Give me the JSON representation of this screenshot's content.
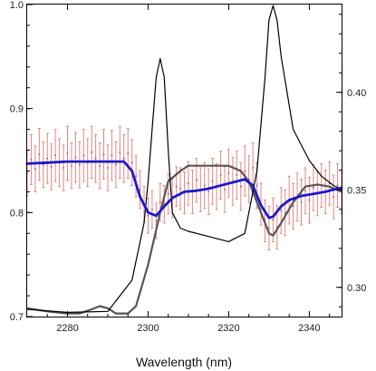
{
  "chart_data": {
    "type": "line",
    "xlabel": "Wavelength (nm)",
    "xlim": [
      2270,
      2348
    ],
    "ylim_left": [
      0.7,
      1.0
    ],
    "ylim_right": [
      0.285,
      0.445
    ],
    "x_ticks": [
      2280,
      2300,
      2320,
      2340
    ],
    "y_ticks_left": [
      0.7,
      0.8,
      0.9,
      1.0
    ],
    "y_ticks_left_labels": [
      "0.7",
      "0.8",
      "0.9",
      "1.0"
    ],
    "y_ticks_right": [
      0.3,
      0.35,
      0.4
    ],
    "y_ticks_right_labels": [
      "0.30",
      "0.35",
      "0.40"
    ],
    "grid": false,
    "legend": false,
    "colors": {
      "black_line": "#000000",
      "gray_line": "#555555",
      "blue_line": "#1a1acc",
      "error_bars": "#e58585"
    },
    "series": [
      {
        "axis": "left",
        "style": "black-thin",
        "x": [
          2270,
          2280,
          2290,
          2296,
          2299,
          2300,
          2301,
          2302,
          2303,
          2304,
          2305,
          2306,
          2308,
          2310,
          2315,
          2320,
          2324,
          2327,
          2329,
          2330,
          2331,
          2332,
          2333,
          2336,
          2340,
          2343,
          2346,
          2348
        ],
        "y": [
          0.707,
          0.704,
          0.705,
          0.735,
          0.79,
          0.83,
          0.88,
          0.93,
          0.948,
          0.93,
          0.86,
          0.8,
          0.785,
          0.782,
          0.777,
          0.772,
          0.78,
          0.84,
          0.93,
          0.985,
          0.999,
          0.985,
          0.95,
          0.88,
          0.85,
          0.835,
          0.826,
          0.822
        ]
      },
      {
        "axis": "left",
        "style": "gray-thick",
        "x": [
          2270,
          2275,
          2280,
          2283,
          2286,
          2288,
          2290,
          2292,
          2295,
          2297,
          2300,
          2303,
          2305,
          2308,
          2310,
          2315,
          2320,
          2323,
          2325,
          2326,
          2327,
          2329,
          2330,
          2331,
          2333,
          2336,
          2339,
          2342,
          2345,
          2348
        ],
        "y": [
          0.708,
          0.705,
          0.703,
          0.703,
          0.707,
          0.71,
          0.708,
          0.703,
          0.703,
          0.71,
          0.75,
          0.8,
          0.83,
          0.84,
          0.845,
          0.845,
          0.845,
          0.84,
          0.83,
          0.82,
          0.81,
          0.79,
          0.78,
          0.778,
          0.79,
          0.81,
          0.825,
          0.827,
          0.825,
          0.82
        ]
      },
      {
        "axis": "left",
        "style": "blue-thick",
        "x": [
          2270,
          2275,
          2280,
          2285,
          2290,
          2294,
          2296,
          2298,
          2300,
          2302,
          2304,
          2306,
          2309,
          2312,
          2315,
          2320,
          2324,
          2326,
          2328,
          2330,
          2331,
          2333,
          2335,
          2338,
          2341,
          2344,
          2348
        ],
        "y": [
          0.847,
          0.848,
          0.849,
          0.849,
          0.849,
          0.849,
          0.84,
          0.815,
          0.8,
          0.797,
          0.806,
          0.814,
          0.82,
          0.821,
          0.823,
          0.828,
          0.832,
          0.826,
          0.807,
          0.795,
          0.796,
          0.806,
          0.812,
          0.816,
          0.818,
          0.82,
          0.824
        ]
      }
    ],
    "error_bars": {
      "axis": "left",
      "x": [
        2270,
        2271,
        2272,
        2273,
        2274,
        2275,
        2276,
        2277,
        2278,
        2279,
        2280,
        2281,
        2282,
        2283,
        2284,
        2285,
        2286,
        2287,
        2288,
        2289,
        2290,
        2291,
        2292,
        2293,
        2294,
        2295,
        2296,
        2297,
        2298,
        2299,
        2300,
        2301,
        2302,
        2303,
        2304,
        2305,
        2306,
        2307,
        2308,
        2309,
        2310,
        2311,
        2312,
        2313,
        2314,
        2315,
        2316,
        2317,
        2318,
        2319,
        2320,
        2321,
        2322,
        2323,
        2324,
        2325,
        2326,
        2327,
        2328,
        2329,
        2330,
        2331,
        2332,
        2333,
        2334,
        2335,
        2336,
        2337,
        2338,
        2339,
        2340,
        2341,
        2342,
        2343,
        2344,
        2345,
        2346,
        2347,
        2348
      ],
      "center": [
        0.838,
        0.851,
        0.842,
        0.856,
        0.846,
        0.852,
        0.844,
        0.855,
        0.848,
        0.843,
        0.857,
        0.845,
        0.853,
        0.846,
        0.855,
        0.848,
        0.858,
        0.852,
        0.845,
        0.856,
        0.843,
        0.855,
        0.846,
        0.858,
        0.852,
        0.857,
        0.848,
        0.835,
        0.822,
        0.808,
        0.797,
        0.803,
        0.792,
        0.81,
        0.808,
        0.818,
        0.814,
        0.825,
        0.823,
        0.819,
        0.828,
        0.82,
        0.831,
        0.822,
        0.826,
        0.82,
        0.83,
        0.825,
        0.836,
        0.822,
        0.838,
        0.83,
        0.836,
        0.825,
        0.84,
        0.832,
        0.843,
        0.826,
        0.808,
        0.792,
        0.785,
        0.793,
        0.786,
        0.802,
        0.8,
        0.812,
        0.806,
        0.815,
        0.81,
        0.821,
        0.812,
        0.824,
        0.818,
        0.826,
        0.82,
        0.828,
        0.815,
        0.826,
        0.82
      ],
      "err": [
        0.022,
        0.024,
        0.022,
        0.025,
        0.022,
        0.024,
        0.022,
        0.025,
        0.023,
        0.022,
        0.026,
        0.022,
        0.024,
        0.022,
        0.025,
        0.023,
        0.025,
        0.023,
        0.022,
        0.024,
        0.022,
        0.024,
        0.022,
        0.025,
        0.023,
        0.024,
        0.022,
        0.02,
        0.018,
        0.017,
        0.017,
        0.018,
        0.017,
        0.018,
        0.018,
        0.019,
        0.019,
        0.019,
        0.02,
        0.02,
        0.021,
        0.021,
        0.021,
        0.021,
        0.022,
        0.022,
        0.022,
        0.022,
        0.023,
        0.022,
        0.023,
        0.023,
        0.023,
        0.023,
        0.024,
        0.023,
        0.024,
        0.022,
        0.02,
        0.02,
        0.021,
        0.021,
        0.021,
        0.022,
        0.022,
        0.023,
        0.022,
        0.023,
        0.022,
        0.022,
        0.022,
        0.022,
        0.021,
        0.021,
        0.021,
        0.021,
        0.021,
        0.021,
        0.021
      ]
    }
  }
}
